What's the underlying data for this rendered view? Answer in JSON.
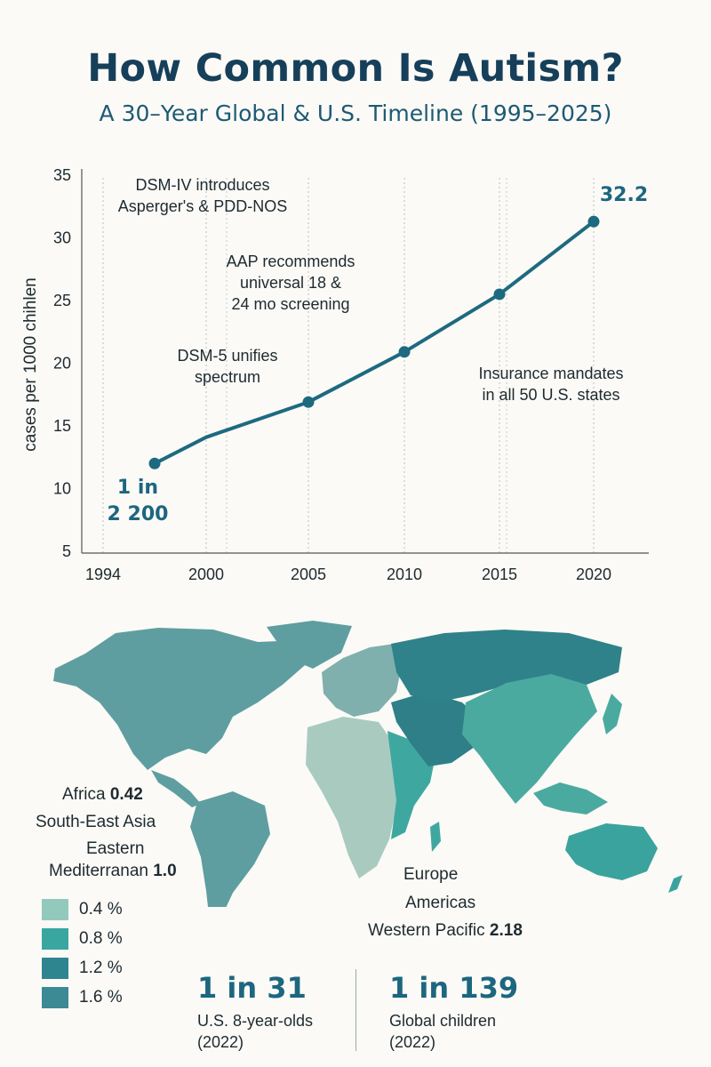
{
  "header": {
    "title": "How Common Is Autism?",
    "subtitle": "A 30–Year Global & U.S. Timeline (1995–2025)"
  },
  "chart_data": {
    "type": "line",
    "ylabel": "cases per 1000 chihlen",
    "xlim": [
      1994,
      2020
    ],
    "ylim": [
      5,
      35
    ],
    "x_ticks": [
      "1994",
      "2000",
      "2005",
      "2010",
      "2015",
      "2020"
    ],
    "y_ticks": [
      "35",
      "30",
      "25",
      "20",
      "15",
      "10",
      "5"
    ],
    "grid": "vertical dotted",
    "series": [
      {
        "x": [
          1997,
          2000,
          2005,
          2010,
          2015,
          2020
        ],
        "y": [
          12.0,
          14.1,
          16.9,
          20.9,
          25.5,
          31.3
        ],
        "markers": [
          true,
          false,
          true,
          true,
          true,
          true
        ],
        "color": "#1d6a80"
      }
    ],
    "annotations": [
      {
        "text": [
          "DSM-IV introduces",
          "Asperger's & PDD-NOS"
        ],
        "year": 1994
      },
      {
        "text": [
          "AAP recommends",
          "universal 18 &",
          "24 mo screening"
        ],
        "year": 2007
      },
      {
        "text": [
          "DSM-5 unifies",
          "spectrum"
        ],
        "year": 2013
      },
      {
        "text": [
          "Insurance mandates",
          "in all 50 U.S. states"
        ],
        "year": 2014
      }
    ],
    "start_label": [
      "1 in",
      "2 200"
    ],
    "end_label": "32.2"
  },
  "map": {
    "labels": {
      "africa": "Africa",
      "africa_value": "0.42",
      "sea": "South-East Asia",
      "emr_line1": "Eastern",
      "emr_line2": "Mediterranan",
      "emr_value": "1.0",
      "europe": "Europe",
      "americas": "Americas",
      "wpr": "Western Pacific",
      "wpr_value": "2.18"
    },
    "legend": [
      {
        "label": "0.4 %",
        "color": "#93c9bd"
      },
      {
        "label": "0.8 %",
        "color": "#3aa6a0"
      },
      {
        "label": "1.2 %",
        "color": "#2e8590"
      },
      {
        "label": "1.6 %",
        "color": "#3c8a93"
      }
    ],
    "colors": {
      "americas": "#5f9ea0",
      "europe": "#7fb0ad",
      "africa": "#a9cbbf",
      "east_africa": "#3ea8a0",
      "middle_east": "#2f7f88",
      "russia": "#2f8289",
      "asia": "#4aaaa0",
      "australia": "#3aa39e"
    }
  },
  "stats": [
    {
      "value": "1 in 31",
      "line1": "U.S. 8-year-olds",
      "line2": "(2022)"
    },
    {
      "value": "1 in 139",
      "line1": "Global children",
      "line2": "(2022)"
    }
  ]
}
